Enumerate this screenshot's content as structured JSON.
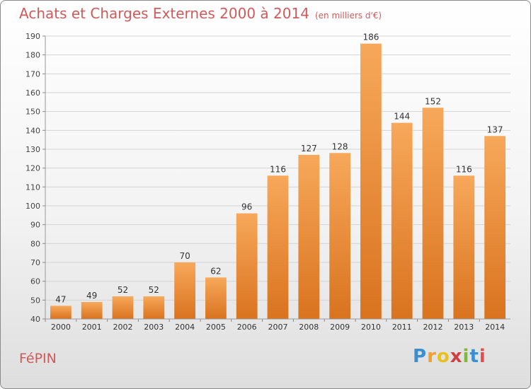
{
  "page": {
    "title": "Achats et Charges Externes 2000 à 2014",
    "unit": "(en milliers d'€)",
    "commune": "FéPIN",
    "logo": "Proxiti"
  },
  "colors": {
    "bar_top": "#f7a85a",
    "bar_bottom": "#d9731f",
    "title": "#d05a5a"
  },
  "chart_data": {
    "type": "bar",
    "categories": [
      "2000",
      "2001",
      "2002",
      "2003",
      "2004",
      "2005",
      "2006",
      "2007",
      "2008",
      "2009",
      "2010",
      "2011",
      "2012",
      "2013",
      "2014"
    ],
    "values": [
      47,
      49,
      52,
      52,
      70,
      62,
      96,
      116,
      127,
      128,
      186,
      144,
      152,
      116,
      137
    ],
    "ylim": [
      40,
      190
    ],
    "ytick_step": 10,
    "grid": true
  }
}
